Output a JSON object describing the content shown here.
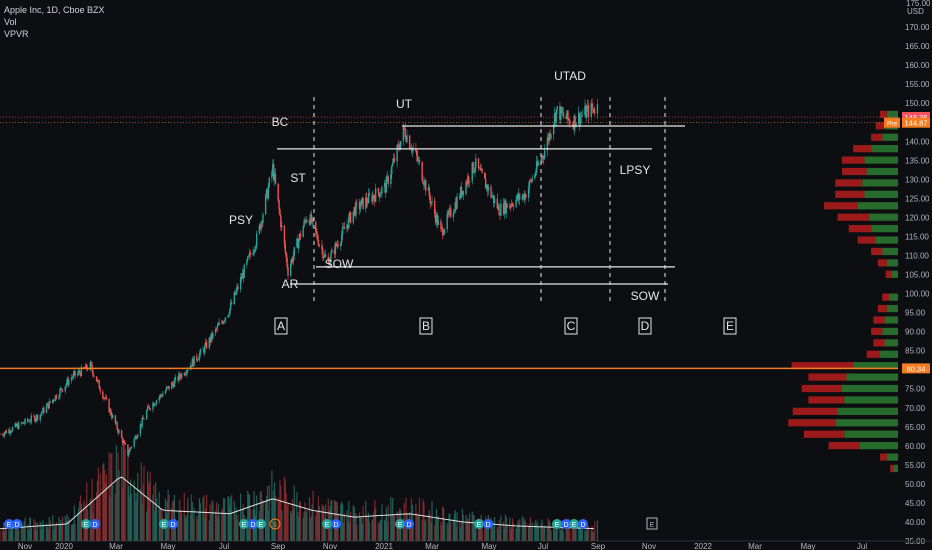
{
  "legend": {
    "symbol_line": "Apple Inc, 1D, Cboe BZX",
    "vol": "Vol",
    "vpvr": "VPVR"
  },
  "price_axis": {
    "unit": "USD",
    "top_label": "175.00",
    "ticks": [
      "170.00",
      "165.00",
      "160.00",
      "155.00",
      "150.00",
      "145.00",
      "140.00",
      "135.00",
      "130.00",
      "125.00",
      "120.00",
      "115.00",
      "110.00",
      "105.00",
      "100.00",
      "95.00",
      "90.00",
      "85.00",
      "80.00",
      "75.00",
      "70.00",
      "65.00",
      "60.00",
      "55.00",
      "50.00",
      "45.00",
      "40.00",
      "35.00"
    ],
    "tags": [
      {
        "label": "146.36",
        "color": "#f7525f"
      },
      {
        "label": "144.87",
        "color": "#f57c20",
        "prefix": "Pre"
      },
      {
        "label": "80.34",
        "color": "#f57c20"
      }
    ]
  },
  "time_axis": {
    "labels": [
      "Nov",
      "2020",
      "Mar",
      "May",
      "Jul",
      "Sep",
      "Nov",
      "2021",
      "Mar",
      "May",
      "Jul",
      "Sep",
      "Nov",
      "2022",
      "Mar",
      "May",
      "Jul"
    ]
  },
  "annotations": {
    "psy": "PSY",
    "bc": "BC",
    "st": "ST",
    "ar": "AR",
    "ut": "UT",
    "sow1": "SOW",
    "utad": "UTAD",
    "lpsy": "LPSY",
    "sow2": "SOW",
    "phases": [
      "A",
      "B",
      "C",
      "D",
      "E"
    ]
  },
  "event_markers": [
    {
      "type": "dividend",
      "text": "E"
    },
    {
      "type": "dividend",
      "text": "D"
    },
    {
      "type": "earnings",
      "text": "E"
    },
    {
      "type": "dividend",
      "text": "D"
    },
    {
      "type": "earnings",
      "text": "E"
    },
    {
      "type": "dividend",
      "text": "D"
    },
    {
      "type": "earnings",
      "text": "E"
    },
    {
      "type": "dividend",
      "text": "D"
    },
    {
      "type": "earnings",
      "text": "E"
    },
    {
      "type": "split",
      "text": "S"
    },
    {
      "type": "earnings",
      "text": "E"
    },
    {
      "type": "dividend",
      "text": "D"
    },
    {
      "type": "earnings",
      "text": "E"
    },
    {
      "type": "dividend",
      "text": "D"
    },
    {
      "type": "earnings",
      "text": "E"
    },
    {
      "type": "dividend",
      "text": "D"
    },
    {
      "type": "earnings",
      "text": "E"
    },
    {
      "type": "dividend",
      "text": "D"
    },
    {
      "type": "earnings",
      "text": "E"
    },
    {
      "type": "dividend",
      "text": "D"
    },
    {
      "type": "future",
      "text": "E"
    }
  ],
  "colors": {
    "up": "#26a69a",
    "down": "#ef5350",
    "hline": "#f57c20",
    "text": "#d1d4dc",
    "vpvr_up": "#2e7d32",
    "vpvr_down": "#b71c1c"
  },
  "chart_data": {
    "type": "candlestick",
    "title": "Apple Inc, 1D, Cboe BZX",
    "ylim": [
      35,
      175
    ],
    "x_range": [
      "2019-11-01",
      "2022-08-01"
    ],
    "horizontal_line": 80.34,
    "last_price": 146.36,
    "premarket_price": 144.87,
    "price_path": [
      {
        "date": "2019-11-01",
        "price": 63
      },
      {
        "date": "2019-12-15",
        "price": 68
      },
      {
        "date": "2020-01-20",
        "price": 78
      },
      {
        "date": "2020-02-10",
        "price": 81
      },
      {
        "date": "2020-02-25",
        "price": 73
      },
      {
        "date": "2020-03-23",
        "price": 58
      },
      {
        "date": "2020-04-15",
        "price": 70
      },
      {
        "date": "2020-05-15",
        "price": 77
      },
      {
        "date": "2020-06-15",
        "price": 85
      },
      {
        "date": "2020-07-15",
        "price": 96
      },
      {
        "date": "2020-07-31",
        "price": 106
      },
      {
        "date": "2020-08-15",
        "price": 115
      },
      {
        "date": "2020-09-01",
        "price": 133
      },
      {
        "date": "2020-09-18",
        "price": 106
      },
      {
        "date": "2020-10-10",
        "price": 121
      },
      {
        "date": "2020-11-01",
        "price": 108
      },
      {
        "date": "2020-12-01",
        "price": 122
      },
      {
        "date": "2021-01-05",
        "price": 128
      },
      {
        "date": "2021-01-26",
        "price": 143
      },
      {
        "date": "2021-02-10",
        "price": 135
      },
      {
        "date": "2021-03-08",
        "price": 116
      },
      {
        "date": "2021-04-15",
        "price": 134
      },
      {
        "date": "2021-05-12",
        "price": 122
      },
      {
        "date": "2021-06-10",
        "price": 126
      },
      {
        "date": "2021-07-01",
        "price": 137
      },
      {
        "date": "2021-07-15",
        "price": 148
      },
      {
        "date": "2021-08-01",
        "price": 145
      },
      {
        "date": "2021-08-20",
        "price": 148
      },
      {
        "date": "2021-08-30",
        "price": 149
      }
    ],
    "volume_avg_path": [
      {
        "date": "2019-11-01",
        "v": 0.18
      },
      {
        "date": "2020-01-15",
        "v": 0.25
      },
      {
        "date": "2020-03-15",
        "v": 0.95
      },
      {
        "date": "2020-05-01",
        "v": 0.45
      },
      {
        "date": "2020-07-15",
        "v": 0.4
      },
      {
        "date": "2020-09-01",
        "v": 0.62
      },
      {
        "date": "2020-10-15",
        "v": 0.45
      },
      {
        "date": "2020-12-01",
        "v": 0.35
      },
      {
        "date": "2021-02-01",
        "v": 0.4
      },
      {
        "date": "2021-04-01",
        "v": 0.28
      },
      {
        "date": "2021-06-01",
        "v": 0.22
      },
      {
        "date": "2021-08-30",
        "v": 0.18
      }
    ],
    "wyckoff_levels": [
      {
        "label": "BC resistance",
        "price": 138
      },
      {
        "label": "UT",
        "price": 144
      },
      {
        "label": "SOW support",
        "price": 103
      },
      {
        "label": "AR low",
        "price": 107
      }
    ],
    "vpvr": [
      {
        "price": 147,
        "up": 0.1,
        "down": 0.06
      },
      {
        "price": 144,
        "up": 0.12,
        "down": 0.08
      },
      {
        "price": 141,
        "up": 0.14,
        "down": 0.1
      },
      {
        "price": 138,
        "up": 0.24,
        "down": 0.16
      },
      {
        "price": 135,
        "up": 0.3,
        "down": 0.2
      },
      {
        "price": 132,
        "up": 0.28,
        "down": 0.22
      },
      {
        "price": 129,
        "up": 0.32,
        "down": 0.24
      },
      {
        "price": 126,
        "up": 0.3,
        "down": 0.26
      },
      {
        "price": 123,
        "up": 0.36,
        "down": 0.3
      },
      {
        "price": 120,
        "up": 0.26,
        "down": 0.28
      },
      {
        "price": 117,
        "up": 0.24,
        "down": 0.2
      },
      {
        "price": 114,
        "up": 0.2,
        "down": 0.16
      },
      {
        "price": 111,
        "up": 0.14,
        "down": 0.1
      },
      {
        "price": 108,
        "up": 0.1,
        "down": 0.08
      },
      {
        "price": 105,
        "up": 0.06,
        "down": 0.05
      },
      {
        "price": 99,
        "up": 0.08,
        "down": 0.06
      },
      {
        "price": 96,
        "up": 0.1,
        "down": 0.08
      },
      {
        "price": 93,
        "up": 0.12,
        "down": 0.1
      },
      {
        "price": 90,
        "up": 0.14,
        "down": 0.1
      },
      {
        "price": 87,
        "up": 0.12,
        "down": 0.1
      },
      {
        "price": 84,
        "up": 0.16,
        "down": 0.12
      },
      {
        "price": 81,
        "up": 0.4,
        "down": 0.55
      },
      {
        "price": 78,
        "up": 0.46,
        "down": 0.34
      },
      {
        "price": 75,
        "up": 0.5,
        "down": 0.36
      },
      {
        "price": 72,
        "up": 0.48,
        "down": 0.32
      },
      {
        "price": 69,
        "up": 0.54,
        "down": 0.4
      },
      {
        "price": 66,
        "up": 0.56,
        "down": 0.42
      },
      {
        "price": 63,
        "up": 0.48,
        "down": 0.36
      },
      {
        "price": 60,
        "up": 0.34,
        "down": 0.28
      },
      {
        "price": 57,
        "up": 0.1,
        "down": 0.06
      },
      {
        "price": 54,
        "up": 0.04,
        "down": 0.03
      }
    ]
  }
}
